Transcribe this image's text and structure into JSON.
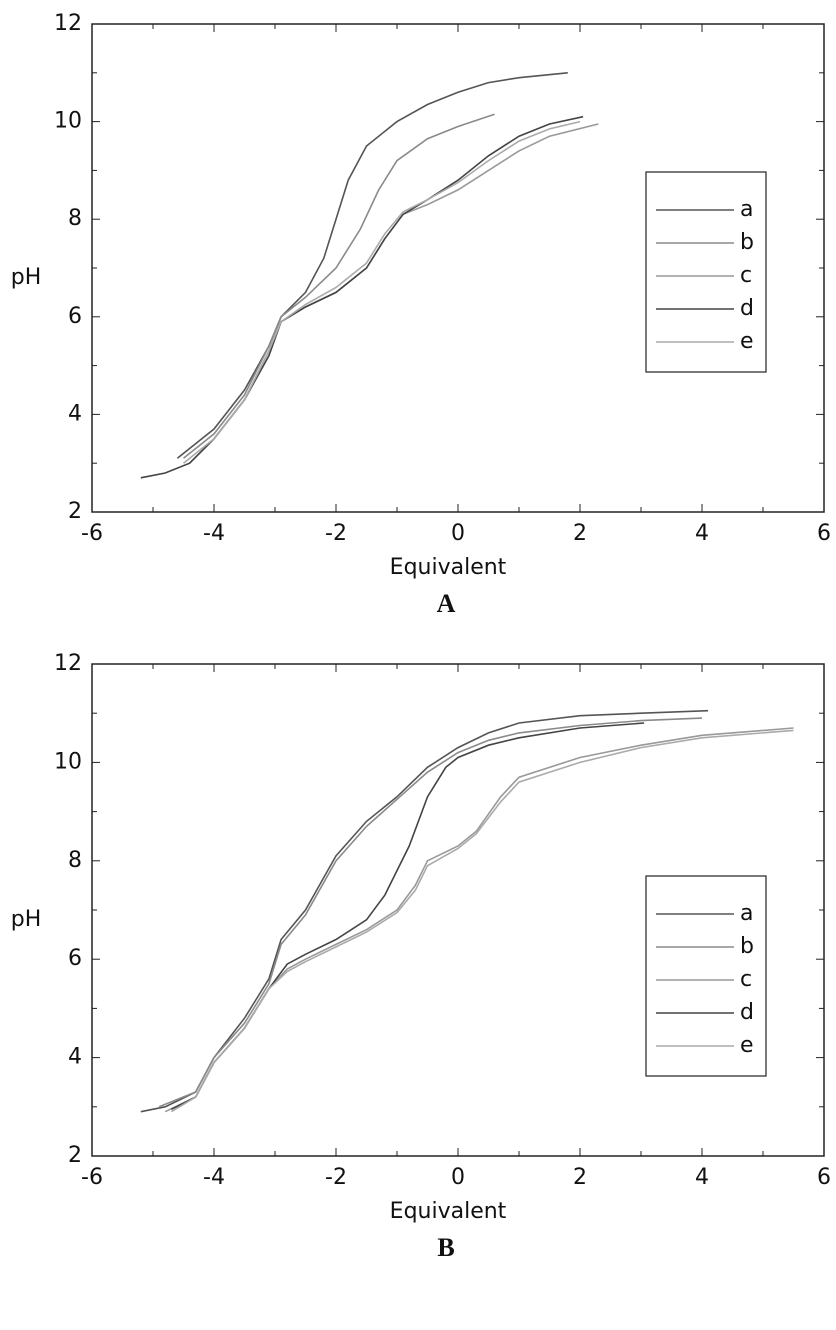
{
  "chart_data": [
    {
      "type": "line",
      "xlabel": "Equivalent",
      "ylabel": "pH",
      "caption": "A",
      "xlim": [
        -6,
        6
      ],
      "ylim": [
        2,
        12
      ],
      "xticks": [
        -6,
        -4,
        -2,
        0,
        2,
        4,
        6
      ],
      "yticks": [
        2,
        4,
        6,
        8,
        10,
        12
      ],
      "legend": "right",
      "series": [
        {
          "name": "a",
          "color": "#555555",
          "x": [
            -4.6,
            -4,
            -3.5,
            -3.1,
            -2.9,
            -2.5,
            -2.2,
            -2,
            -1.8,
            -1.5,
            -1,
            -0.5,
            0,
            0.5,
            1,
            1.8
          ],
          "values": [
            3.1,
            3.7,
            4.5,
            5.4,
            6.0,
            6.5,
            7.2,
            8.0,
            8.8,
            9.5,
            10.0,
            10.35,
            10.6,
            10.8,
            10.9,
            11.0
          ]
        },
        {
          "name": "b",
          "color": "#8a8a8a",
          "x": [
            -4.5,
            -4,
            -3.5,
            -3.1,
            -2.9,
            -2.5,
            -2,
            -1.6,
            -1.3,
            -1,
            -0.5,
            0,
            0.6
          ],
          "values": [
            3.1,
            3.6,
            4.4,
            5.4,
            6.0,
            6.4,
            7.0,
            7.8,
            8.6,
            9.2,
            9.65,
            9.9,
            10.15
          ]
        },
        {
          "name": "c",
          "color": "#999999",
          "x": [
            -4.4,
            -4,
            -3.5,
            -3.1,
            -2.9,
            -2.5,
            -2,
            -1.5,
            -1.2,
            -0.9,
            -0.5,
            0,
            0.5,
            1,
            1.5,
            2.3
          ],
          "values": [
            3.0,
            3.5,
            4.3,
            5.3,
            5.9,
            6.2,
            6.5,
            7.0,
            7.6,
            8.1,
            8.3,
            8.6,
            9.0,
            9.4,
            9.7,
            9.95
          ]
        },
        {
          "name": "d",
          "color": "#444444",
          "x": [
            -5.2,
            -4.8,
            -4.4,
            -4,
            -3.5,
            -3.1,
            -2.9,
            -2.5,
            -2,
            -1.5,
            -1.2,
            -0.9,
            -0.5,
            0,
            0.5,
            1,
            1.5,
            2.05
          ],
          "values": [
            2.7,
            2.8,
            3.0,
            3.5,
            4.3,
            5.2,
            5.9,
            6.2,
            6.5,
            7.0,
            7.6,
            8.1,
            8.4,
            8.8,
            9.3,
            9.7,
            9.95,
            10.1
          ]
        },
        {
          "name": "e",
          "color": "#aaaaaa",
          "x": [
            -4.5,
            -4,
            -3.5,
            -3.1,
            -2.9,
            -2.5,
            -2,
            -1.5,
            -1.2,
            -0.9,
            -0.5,
            0,
            0.5,
            1,
            1.5,
            2.0
          ],
          "values": [
            3.0,
            3.5,
            4.3,
            5.3,
            5.9,
            6.25,
            6.6,
            7.1,
            7.7,
            8.15,
            8.4,
            8.75,
            9.2,
            9.6,
            9.85,
            10.0
          ]
        }
      ]
    },
    {
      "type": "line",
      "xlabel": "Equivalent",
      "ylabel": "pH",
      "caption": "B",
      "xlim": [
        -6,
        6
      ],
      "ylim": [
        2,
        12
      ],
      "xticks": [
        -6,
        -4,
        -2,
        0,
        2,
        4,
        6
      ],
      "yticks": [
        2,
        4,
        6,
        8,
        10,
        12
      ],
      "legend": "lower right",
      "series": [
        {
          "name": "a",
          "color": "#555555",
          "x": [
            -5.2,
            -4.8,
            -4.3,
            -4,
            -3.5,
            -3.1,
            -2.9,
            -2.5,
            -2,
            -1.5,
            -1,
            -0.5,
            0,
            0.5,
            1,
            2,
            3,
            4.1
          ],
          "values": [
            2.9,
            3.0,
            3.3,
            4.0,
            4.8,
            5.6,
            6.4,
            7.0,
            8.1,
            8.8,
            9.3,
            9.9,
            10.3,
            10.6,
            10.8,
            10.95,
            11.0,
            11.05
          ]
        },
        {
          "name": "b",
          "color": "#8a8a8a",
          "x": [
            -4.9,
            -4.3,
            -4,
            -3.5,
            -3.1,
            -2.9,
            -2.5,
            -2,
            -1.5,
            -1,
            -0.5,
            0,
            0.5,
            1,
            2,
            3,
            4
          ],
          "values": [
            3.0,
            3.3,
            4.0,
            4.7,
            5.5,
            6.3,
            6.9,
            8.0,
            8.7,
            9.25,
            9.8,
            10.2,
            10.45,
            10.6,
            10.75,
            10.85,
            10.9
          ]
        },
        {
          "name": "c",
          "color": "#999999",
          "x": [
            -4.8,
            -4.3,
            -4,
            -3.5,
            -3.1,
            -2.8,
            -2.5,
            -2,
            -1.5,
            -1,
            -0.7,
            -0.5,
            0,
            0.3,
            0.7,
            1,
            2,
            3,
            4,
            5.5
          ],
          "values": [
            2.9,
            3.2,
            3.9,
            4.6,
            5.4,
            5.8,
            6.0,
            6.3,
            6.6,
            7.0,
            7.5,
            8.0,
            8.3,
            8.6,
            9.3,
            9.7,
            10.1,
            10.35,
            10.55,
            10.7
          ]
        },
        {
          "name": "d",
          "color": "#444444",
          "x": [
            -4.7,
            -4.3,
            -4,
            -3.5,
            -3.1,
            -2.8,
            -2.5,
            -2,
            -1.5,
            -1.2,
            -0.8,
            -0.5,
            -0.2,
            0,
            0.5,
            1,
            2,
            3.05
          ],
          "values": [
            2.95,
            3.2,
            3.9,
            4.6,
            5.4,
            5.9,
            6.1,
            6.4,
            6.8,
            7.3,
            8.3,
            9.3,
            9.9,
            10.1,
            10.35,
            10.5,
            10.7,
            10.8
          ]
        },
        {
          "name": "e",
          "color": "#aaaaaa",
          "x": [
            -4.7,
            -4.3,
            -4,
            -3.5,
            -3.1,
            -2.8,
            -2.5,
            -2,
            -1.5,
            -1,
            -0.7,
            -0.5,
            0,
            0.3,
            0.7,
            1,
            2,
            3,
            4,
            5.5
          ],
          "values": [
            2.9,
            3.2,
            3.9,
            4.6,
            5.4,
            5.75,
            5.95,
            6.25,
            6.55,
            6.95,
            7.4,
            7.9,
            8.25,
            8.55,
            9.2,
            9.6,
            10.0,
            10.3,
            10.5,
            10.65
          ]
        }
      ]
    }
  ]
}
